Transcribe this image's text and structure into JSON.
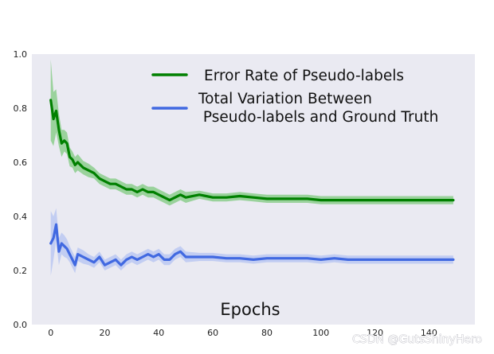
{
  "chart_data": {
    "type": "line",
    "xlabel": "Epochs",
    "ylabel": "",
    "xlim": [
      -7,
      157
    ],
    "ylim": [
      0.0,
      1.0
    ],
    "xticks": [
      "0",
      "20",
      "40",
      "60",
      "80",
      "100",
      "120",
      "140"
    ],
    "yticks": [
      "0.0",
      "0.2",
      "0.4",
      "0.6",
      "0.8",
      "1.0"
    ],
    "grid": false,
    "legend_position": "top-right",
    "series": [
      {
        "name": "Error Rate of Pseudo-labels",
        "color": "#008000",
        "band_color": "#7fc97f",
        "x": [
          0,
          1,
          2,
          3,
          4,
          5,
          6,
          7,
          8,
          9,
          10,
          12,
          14,
          16,
          18,
          20,
          22,
          24,
          26,
          28,
          30,
          32,
          34,
          36,
          38,
          40,
          42,
          44,
          46,
          48,
          50,
          55,
          60,
          65,
          70,
          75,
          80,
          85,
          90,
          95,
          100,
          105,
          110,
          120,
          130,
          140,
          149
        ],
        "y": [
          0.83,
          0.76,
          0.79,
          0.72,
          0.67,
          0.68,
          0.67,
          0.62,
          0.61,
          0.59,
          0.6,
          0.58,
          0.57,
          0.56,
          0.54,
          0.53,
          0.52,
          0.52,
          0.51,
          0.5,
          0.5,
          0.49,
          0.5,
          0.49,
          0.49,
          0.48,
          0.47,
          0.46,
          0.47,
          0.48,
          0.47,
          0.48,
          0.47,
          0.47,
          0.475,
          0.47,
          0.465,
          0.465,
          0.465,
          0.465,
          0.46,
          0.46,
          0.46,
          0.46,
          0.46,
          0.46,
          0.46
        ],
        "band": [
          0.15,
          0.1,
          0.08,
          0.06,
          0.05,
          0.04,
          0.04,
          0.035,
          0.03,
          0.03,
          0.03,
          0.025,
          0.025,
          0.02,
          0.02,
          0.02,
          0.02,
          0.02,
          0.02,
          0.02,
          0.02,
          0.02,
          0.02,
          0.02,
          0.02,
          0.02,
          0.02,
          0.02,
          0.02,
          0.02,
          0.02,
          0.015,
          0.015,
          0.015,
          0.015,
          0.015,
          0.015,
          0.015,
          0.015,
          0.015,
          0.015,
          0.015,
          0.015,
          0.015,
          0.015,
          0.015,
          0.015
        ]
      },
      {
        "name": "Total Variation Between\n Pseudo-labels and Ground Truth",
        "color": "#4169e1",
        "band_color": "#b4c3f2",
        "x": [
          0,
          1,
          2,
          3,
          4,
          5,
          6,
          7,
          8,
          9,
          10,
          12,
          14,
          16,
          18,
          20,
          22,
          24,
          26,
          28,
          30,
          32,
          34,
          36,
          38,
          40,
          42,
          44,
          46,
          48,
          50,
          55,
          60,
          65,
          70,
          75,
          80,
          85,
          90,
          95,
          100,
          105,
          110,
          120,
          130,
          140,
          149
        ],
        "y": [
          0.3,
          0.32,
          0.37,
          0.27,
          0.3,
          0.29,
          0.28,
          0.26,
          0.24,
          0.22,
          0.26,
          0.25,
          0.24,
          0.23,
          0.25,
          0.22,
          0.23,
          0.24,
          0.22,
          0.24,
          0.25,
          0.24,
          0.25,
          0.26,
          0.25,
          0.26,
          0.24,
          0.24,
          0.26,
          0.27,
          0.25,
          0.25,
          0.25,
          0.245,
          0.245,
          0.24,
          0.245,
          0.245,
          0.245,
          0.245,
          0.24,
          0.245,
          0.24,
          0.24,
          0.24,
          0.24,
          0.24
        ],
        "band": [
          0.12,
          0.08,
          0.06,
          0.05,
          0.04,
          0.04,
          0.035,
          0.03,
          0.03,
          0.03,
          0.025,
          0.025,
          0.02,
          0.02,
          0.02,
          0.02,
          0.02,
          0.02,
          0.02,
          0.02,
          0.02,
          0.02,
          0.02,
          0.02,
          0.02,
          0.02,
          0.02,
          0.02,
          0.02,
          0.02,
          0.02,
          0.015,
          0.015,
          0.015,
          0.015,
          0.015,
          0.015,
          0.015,
          0.015,
          0.015,
          0.015,
          0.015,
          0.015,
          0.015,
          0.015,
          0.015,
          0.015
        ]
      }
    ]
  },
  "watermark": "CSDN @GutsShinyHero"
}
